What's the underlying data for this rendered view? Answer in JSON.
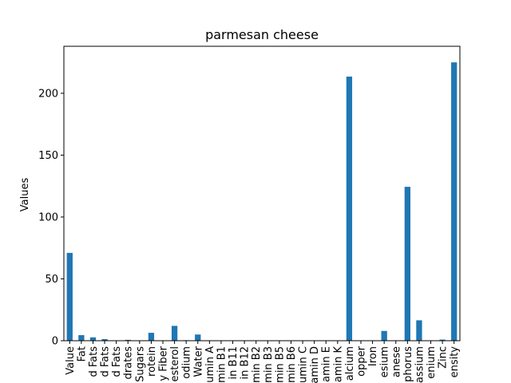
{
  "chart_data": {
    "type": "bar",
    "title": "parmesan cheese",
    "xlabel": "",
    "ylabel": "Values",
    "ylim": [
      0,
      238
    ],
    "yticks": [
      0,
      50,
      100,
      150,
      200
    ],
    "bar_color": "#1f77b4",
    "grid": false,
    "categories": [
      "Value",
      "Fat",
      "d Fats",
      "d Fats",
      "d Fats",
      "drates",
      "Sugars",
      "rotein",
      "y Fiber",
      "esterol",
      "odium",
      "Water",
      "umin A",
      "min B1",
      "in B11",
      "in B12",
      "min B2",
      "min B3",
      "min B5",
      "min B6",
      "umin C",
      "amin D",
      "amin E",
      "amin K",
      "alcium",
      "opper",
      "Iron",
      "esium",
      "anese",
      "phorus",
      "assium",
      "enium",
      "Zinc",
      "ensity"
    ],
    "values": [
      71,
      4.5,
      2.7,
      1.3,
      0.2,
      0.7,
      0.1,
      6.4,
      0.0,
      12.0,
      0.4,
      5.0,
      0.02,
      0.0,
      0.0,
      0.0,
      0.0,
      0.0,
      0.0,
      0.0,
      0.0,
      0.0,
      0.0,
      0.0,
      213.5,
      0.0,
      0.2,
      7.9,
      0.0,
      124.4,
      16.5,
      0.0,
      0.9,
      225
    ]
  }
}
